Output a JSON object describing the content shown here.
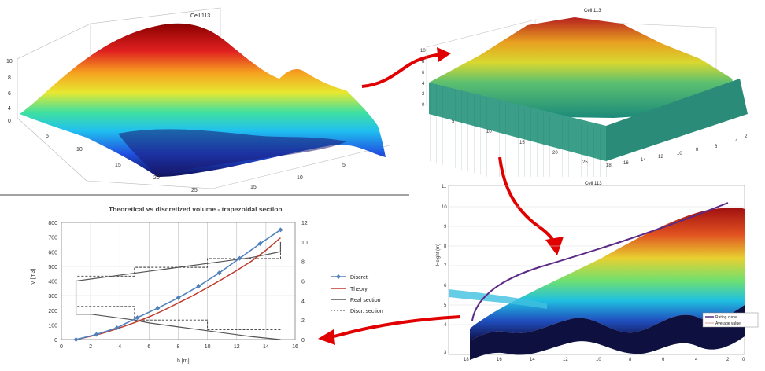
{
  "panel_a": {
    "title": "Cell 113",
    "z_ticks": [
      "10",
      "8",
      "6",
      "4",
      "2",
      "0"
    ],
    "x_ticks": [
      "5",
      "10",
      "15",
      "20",
      "25"
    ],
    "y_ticks": [
      "5",
      "10",
      "15"
    ]
  },
  "panel_b": {
    "title": "Cell 113",
    "z_ticks": [
      "10",
      "8",
      "6",
      "4",
      "2",
      "0"
    ],
    "x_ticks": [
      "5",
      "10",
      "15",
      "20",
      "25"
    ],
    "y_ticks": [
      "2",
      "4",
      "6",
      "8",
      "10",
      "12",
      "14",
      "16",
      "18"
    ]
  },
  "panel_c": {
    "title": "Cell 113",
    "ylabel": "Height (m)",
    "y_ticks": [
      "11",
      "10",
      "9",
      "8",
      "7",
      "6",
      "5",
      "4",
      "3"
    ],
    "x_ticks": [
      "18",
      "16",
      "14",
      "12",
      "10",
      "8",
      "6",
      "4",
      "2",
      "0"
    ],
    "legend": [
      "Rating curve",
      "Average value"
    ],
    "colors": {
      "rating": "#5b2a86",
      "average": "#d9a0a0"
    }
  },
  "chart_data": {
    "type": "line",
    "title": "Theoretical vs discretized volume - trapezoidal section",
    "xlabel": "h [m]",
    "ylabel": "V [m3]",
    "xlim": [
      0,
      16
    ],
    "ylim": [
      0,
      800
    ],
    "y2lim": [
      0,
      12
    ],
    "x_ticks": [
      "0",
      "2",
      "4",
      "6",
      "8",
      "10",
      "12",
      "14",
      "16"
    ],
    "y_ticks": [
      "0",
      "100",
      "200",
      "300",
      "400",
      "500",
      "600",
      "700",
      "800"
    ],
    "y2_ticks": [
      "0",
      "2",
      "4",
      "6",
      "8",
      "10",
      "12"
    ],
    "series": [
      {
        "name": "Discret.",
        "color": "#4f81bd",
        "x": [
          1.0,
          2.4,
          3.8,
          5.2,
          6.6,
          8.0,
          9.4,
          10.8,
          12.2,
          13.6,
          15.0
        ],
        "y": [
          0,
          35,
          80,
          150,
          215,
          285,
          365,
          455,
          555,
          655,
          750
        ]
      },
      {
        "name": "Theory",
        "color": "#c0392b",
        "x": [
          1,
          2,
          3,
          4,
          5,
          6,
          7,
          8,
          9,
          10,
          11,
          12,
          13,
          14,
          15
        ],
        "y": [
          0,
          22,
          48,
          80,
          115,
          155,
          200,
          250,
          300,
          355,
          412,
          472,
          535,
          610,
          695
        ]
      },
      {
        "name": "Real section",
        "color": "#555555",
        "x": [
          15,
          14,
          13,
          12,
          11,
          10,
          9,
          8,
          7,
          6,
          5,
          4,
          3,
          2,
          1,
          1,
          2,
          3,
          4,
          5,
          6,
          7,
          8,
          9,
          10,
          11,
          12,
          13,
          14,
          15,
          15
        ],
        "y2": [
          0,
          0.15,
          0.3,
          0.5,
          0.7,
          0.9,
          1.1,
          1.3,
          1.5,
          1.7,
          2.0,
          2.2,
          2.4,
          2.6,
          2.6,
          6.0,
          6.2,
          6.4,
          6.6,
          6.8,
          7.0,
          7.2,
          7.4,
          7.6,
          7.8,
          8.0,
          8.2,
          8.4,
          8.7,
          9.0,
          10.0
        ]
      },
      {
        "name": "Discr. section",
        "color": "#333333",
        "x": [
          15,
          10,
          10,
          5,
          5,
          1,
          1,
          5,
          5,
          10,
          10,
          15,
          15
        ],
        "y2": [
          1.0,
          1.0,
          2.0,
          2.0,
          3.4,
          3.4,
          6.5,
          6.5,
          7.4,
          7.4,
          8.3,
          8.3,
          9.5
        ]
      }
    ],
    "legend_position": "right",
    "grid": true
  }
}
